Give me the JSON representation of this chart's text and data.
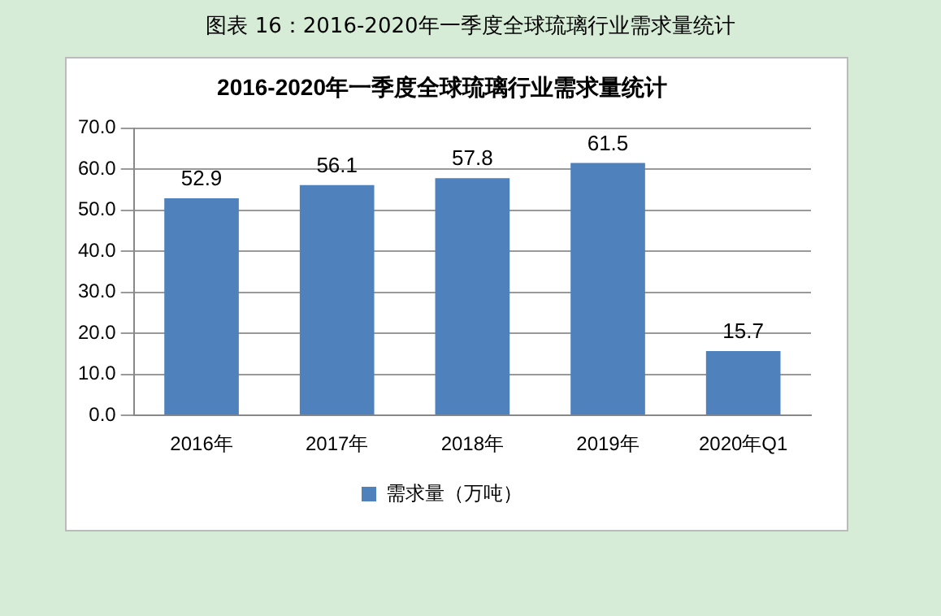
{
  "chart_data": {
    "type": "bar",
    "title": "2016-2020年一季度全球琉璃行业需求量统计",
    "annotations": [
      "图表 16：2016-2020年一季度全球琉璃行业需求量统计"
    ],
    "categories": [
      "2016年",
      "2017年",
      "2018年",
      "2019年",
      "2020年Q1"
    ],
    "series": [
      {
        "name": "需求量（万吨）",
        "color": "#4f81bd",
        "values": [
          52.9,
          56.1,
          57.8,
          61.5,
          15.7
        ]
      }
    ],
    "ylim": [
      0,
      70
    ],
    "yticks": [
      {
        "value": 0,
        "label": "0.0"
      },
      {
        "value": 10,
        "label": "10.0"
      },
      {
        "value": 20,
        "label": "20.0"
      },
      {
        "value": 30,
        "label": "30.0"
      },
      {
        "value": 40,
        "label": "40.0"
      },
      {
        "value": 50,
        "label": "50.0"
      },
      {
        "value": 60,
        "label": "60.0"
      },
      {
        "value": 70,
        "label": "70.0"
      }
    ],
    "grid": "y",
    "legend": "bottom",
    "data_labels": true
  }
}
